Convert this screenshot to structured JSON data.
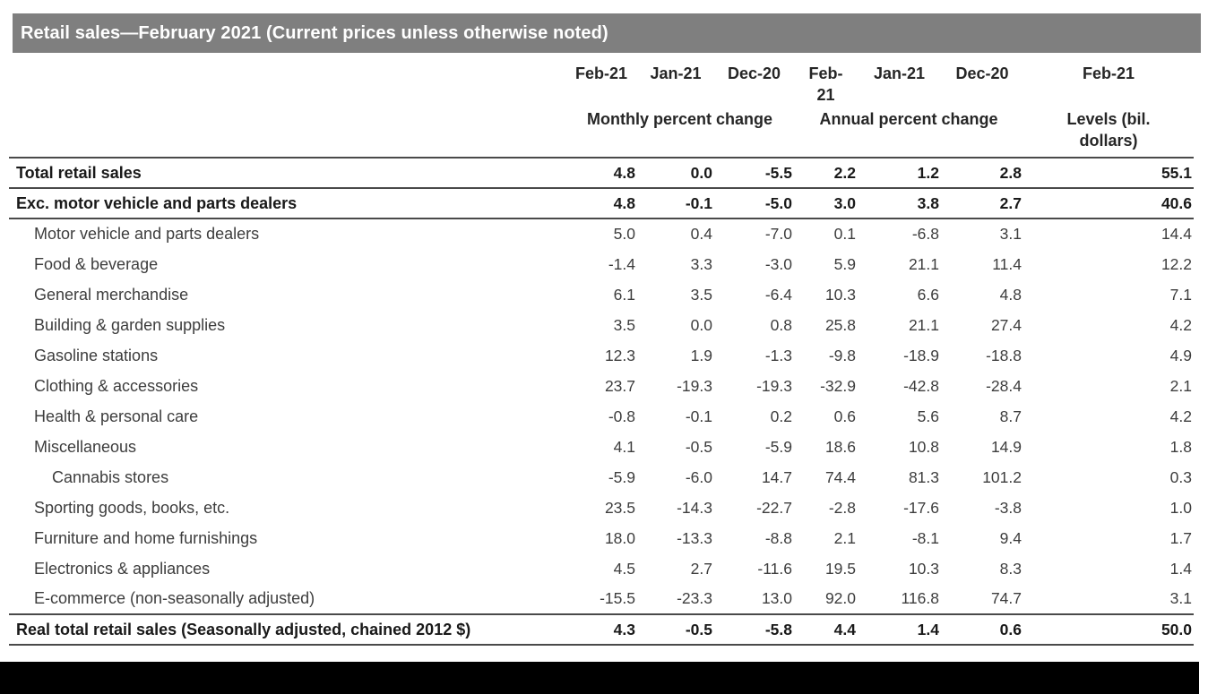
{
  "title": "Retail sales—February 2021 (Current prices unless otherwise noted)",
  "colors": {
    "title_bar_bg": "#7f7f7f",
    "title_text": "#ffffff",
    "body_text": "#3d3d3d",
    "bold_text": "#191919",
    "rule_lines": "#4a4a4a",
    "bottom_bar": "#000000"
  },
  "chart_data": {
    "type": "table",
    "title": "Retail sales—February 2021 (Current prices unless otherwise noted)",
    "date_headers": [
      "Feb-21",
      "Jan-21",
      "Dec-20",
      "Feb-\n21",
      "Jan-21",
      "Dec-20",
      "Feb-21"
    ],
    "group_headers": [
      "Monthly percent change",
      "Annual percent change",
      "Levels (bil.\ndollars)"
    ],
    "column_semantics": [
      "Monthly percent change Feb-21",
      "Monthly percent change Jan-21",
      "Monthly percent change Dec-20",
      "Annual percent change Feb-21",
      "Annual percent change Jan-21",
      "Annual percent change Dec-20",
      "Levels (bil. dollars) Feb-21"
    ],
    "rows": [
      {
        "label": "Total retail sales",
        "bold": true,
        "indent": 0,
        "border_top": true,
        "border_bottom": true,
        "values": [
          "4.8",
          "0.0",
          "-5.5",
          "2.2",
          "1.2",
          "2.8",
          "55.1"
        ]
      },
      {
        "label": "Exc. motor vehicle and parts dealers",
        "bold": true,
        "indent": 0,
        "border_bottom": true,
        "values": [
          "4.8",
          "-0.1",
          "-5.0",
          "3.0",
          "3.8",
          "2.7",
          "40.6"
        ]
      },
      {
        "label": "Motor vehicle and parts dealers",
        "indent": 1,
        "values": [
          "5.0",
          "0.4",
          "-7.0",
          "0.1",
          "-6.8",
          "3.1",
          "14.4"
        ]
      },
      {
        "label": "Food & beverage",
        "indent": 1,
        "values": [
          "-1.4",
          "3.3",
          "-3.0",
          "5.9",
          "21.1",
          "11.4",
          "12.2"
        ]
      },
      {
        "label": "General merchandise",
        "indent": 1,
        "values": [
          "6.1",
          "3.5",
          "-6.4",
          "10.3",
          "6.6",
          "4.8",
          "7.1"
        ]
      },
      {
        "label": "Building & garden supplies",
        "indent": 1,
        "values": [
          "3.5",
          "0.0",
          "0.8",
          "25.8",
          "21.1",
          "27.4",
          "4.2"
        ]
      },
      {
        "label": "Gasoline stations",
        "indent": 1,
        "values": [
          "12.3",
          "1.9",
          "-1.3",
          "-9.8",
          "-18.9",
          "-18.8",
          "4.9"
        ]
      },
      {
        "label": "Clothing & accessories",
        "indent": 1,
        "values": [
          "23.7",
          "-19.3",
          "-19.3",
          "-32.9",
          "-42.8",
          "-28.4",
          "2.1"
        ]
      },
      {
        "label": "Health & personal care",
        "indent": 1,
        "values": [
          "-0.8",
          "-0.1",
          "0.2",
          "0.6",
          "5.6",
          "8.7",
          "4.2"
        ]
      },
      {
        "label": "Miscellaneous",
        "indent": 1,
        "values": [
          "4.1",
          "-0.5",
          "-5.9",
          "18.6",
          "10.8",
          "14.9",
          "1.8"
        ]
      },
      {
        "label": "Cannabis stores",
        "indent": 2,
        "values": [
          "-5.9",
          "-6.0",
          "14.7",
          "74.4",
          "81.3",
          "101.2",
          "0.3"
        ]
      },
      {
        "label": "Sporting goods, books, etc.",
        "indent": 1,
        "values": [
          "23.5",
          "-14.3",
          "-22.7",
          "-2.8",
          "-17.6",
          "-3.8",
          "1.0"
        ]
      },
      {
        "label": "Furniture and home furnishings",
        "indent": 1,
        "values": [
          "18.0",
          "-13.3",
          "-8.8",
          "2.1",
          "-8.1",
          "9.4",
          "1.7"
        ]
      },
      {
        "label": "Electronics & appliances",
        "indent": 1,
        "values": [
          "4.5",
          "2.7",
          "-11.6",
          "19.5",
          "10.3",
          "8.3",
          "1.4"
        ]
      },
      {
        "label": "E-commerce (non-seasonally adjusted)",
        "indent": 1,
        "values": [
          "-15.5",
          "-23.3",
          "13.0",
          "92.0",
          "116.8",
          "74.7",
          "3.1"
        ]
      },
      {
        "label": "Real total retail sales (Seasonally adjusted, chained 2012 $)",
        "bold": true,
        "indent": 0,
        "border_top": true,
        "border_bottom": true,
        "values": [
          "4.3",
          "-0.5",
          "-5.8",
          "4.4",
          "1.4",
          "0.6",
          "50.0"
        ]
      }
    ]
  }
}
